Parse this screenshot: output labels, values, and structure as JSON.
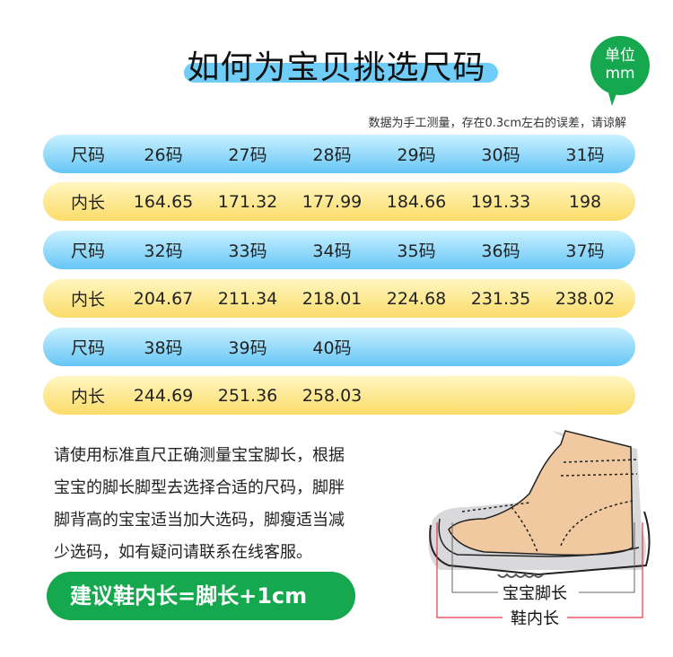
{
  "header": {
    "title": "如何为宝贝挑选尺码",
    "unit_line1": "单位",
    "unit_line2": "mm",
    "note": "数据为手工测量，存在0.3cm左右的误差，请谅解"
  },
  "colors": {
    "size_row": "#66c6f5",
    "length_row": "#fbdc6a",
    "accent": "#15a84e",
    "title_highlight": "#6fcdf7"
  },
  "table": {
    "rows": [
      {
        "type": "size",
        "label": "尺码",
        "values": [
          "26码",
          "27码",
          "28码",
          "29码",
          "30码",
          "31码"
        ]
      },
      {
        "type": "length",
        "label": "内长",
        "values": [
          "164.65",
          "171.32",
          "177.99",
          "184.66",
          "191.33",
          "198"
        ]
      },
      {
        "type": "size",
        "label": "尺码",
        "values": [
          "32码",
          "33码",
          "34码",
          "35码",
          "36码",
          "37码"
        ]
      },
      {
        "type": "length",
        "label": "内长",
        "values": [
          "204.67",
          "211.34",
          "218.01",
          "224.68",
          "231.35",
          "238.02"
        ]
      },
      {
        "type": "size",
        "label": "尺码",
        "values": [
          "38码",
          "39码",
          "40码"
        ]
      },
      {
        "type": "length",
        "label": "内长",
        "values": [
          "244.69",
          "251.36",
          "258.03"
        ]
      }
    ]
  },
  "instructions": {
    "lines": [
      "请使用标准直尺正确测量宝宝脚长，根据",
      "宝宝的脚长脚型去选择合适的尺码，脚胖",
      "脚背高的宝宝适当加大选码，脚瘦适当减",
      "少选码，如有疑问请联系在线客服。"
    ]
  },
  "cta": {
    "label": "建议鞋内长=脚长+1cm"
  },
  "diagram": {
    "foot_length_label": "宝宝脚长",
    "shoe_inner_length_label": "鞋内长"
  }
}
